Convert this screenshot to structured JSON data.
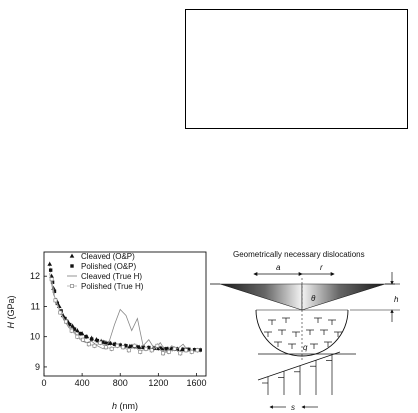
{
  "chart_data": {
    "type": "scatter",
    "xlabel": "h",
    "xunit": "(nm)",
    "ylabel": "H",
    "yunit": "(GPa)",
    "xlim": [
      0,
      1700
    ],
    "ylim": [
      8.7,
      12.8
    ],
    "xticks": [
      "0",
      "400",
      "800",
      "1200",
      "1600"
    ],
    "yticks": [
      "9",
      "10",
      "11",
      "12"
    ],
    "legend": [
      "Cleaved (O&P)",
      "Polished (O&P)",
      "Cleaved (True H)",
      "Polished (True H)"
    ],
    "series": [
      {
        "name": "Cleaved (O&P)",
        "marker": "triangle",
        "x": [
          60,
          80,
          100,
          130,
          160,
          200,
          250,
          300,
          350,
          400,
          450,
          500,
          550,
          600,
          650,
          700,
          750,
          800,
          850,
          900,
          950,
          1000,
          1050,
          1100,
          1150,
          1200,
          1250,
          1300,
          1350,
          1400,
          1450,
          1500
        ],
        "y": [
          12.4,
          12.0,
          11.6,
          11.2,
          11.0,
          10.7,
          10.5,
          10.35,
          10.2,
          10.1,
          10.0,
          9.95,
          9.9,
          9.85,
          9.8,
          9.78,
          9.75,
          9.72,
          9.7,
          9.68,
          9.67,
          9.65,
          9.64,
          9.63,
          9.62,
          9.61,
          9.6,
          9.6,
          9.59,
          9.58,
          9.58,
          9.57
        ]
      },
      {
        "name": "Polished (O&P)",
        "marker": "square",
        "x": [
          70,
          90,
          110,
          140,
          180,
          220,
          270,
          320,
          380,
          440,
          500,
          560,
          620,
          680,
          740,
          800,
          860,
          920,
          980,
          1040,
          1100,
          1160,
          1220,
          1280,
          1340,
          1400,
          1460,
          1520,
          1580,
          1640
        ],
        "y": [
          12.2,
          11.8,
          11.5,
          11.1,
          10.85,
          10.6,
          10.4,
          10.25,
          10.1,
          10.0,
          9.92,
          9.87,
          9.82,
          9.78,
          9.75,
          9.72,
          9.7,
          9.68,
          9.66,
          9.65,
          9.64,
          9.62,
          9.62,
          9.6,
          9.6,
          9.59,
          9.58,
          9.58,
          9.57,
          9.56
        ]
      },
      {
        "name": "Cleaved (True H)",
        "marker": "line",
        "x": [
          60,
          100,
          150,
          200,
          260,
          320,
          380,
          440,
          500,
          560,
          620,
          680,
          740,
          800,
          860,
          920,
          980,
          1040,
          1100,
          1160,
          1220,
          1280,
          1340,
          1400,
          1460,
          1520
        ],
        "y": [
          12.1,
          11.4,
          11.0,
          10.6,
          10.3,
          10.15,
          9.9,
          9.8,
          9.85,
          9.7,
          9.6,
          9.8,
          10.4,
          10.9,
          10.7,
          10.2,
          10.6,
          9.7,
          9.9,
          9.6,
          9.8,
          9.5,
          9.7,
          9.6,
          9.75,
          9.5
        ]
      },
      {
        "name": "Polished (True H)",
        "marker": "open-square",
        "x": [
          80,
          120,
          170,
          230,
          290,
          350,
          410,
          470,
          530,
          590,
          650,
          710,
          770,
          830,
          890,
          950,
          1010,
          1070,
          1130,
          1190,
          1250,
          1310,
          1370,
          1430,
          1490,
          1550,
          1610
        ],
        "y": [
          11.9,
          11.2,
          10.8,
          10.5,
          10.2,
          10.0,
          9.9,
          9.75,
          9.7,
          9.8,
          9.65,
          9.6,
          9.7,
          9.65,
          9.55,
          9.7,
          9.5,
          9.6,
          9.55,
          9.7,
          9.45,
          9.5,
          9.6,
          9.45,
          9.55,
          9.5,
          9.55
        ]
      }
    ]
  },
  "diagram": {
    "title": "Geometrically necessary dislocations",
    "label_a": "a",
    "label_r": "r",
    "label_theta": "θ",
    "label_h": "h",
    "label_q": "q",
    "label_s": "s"
  }
}
